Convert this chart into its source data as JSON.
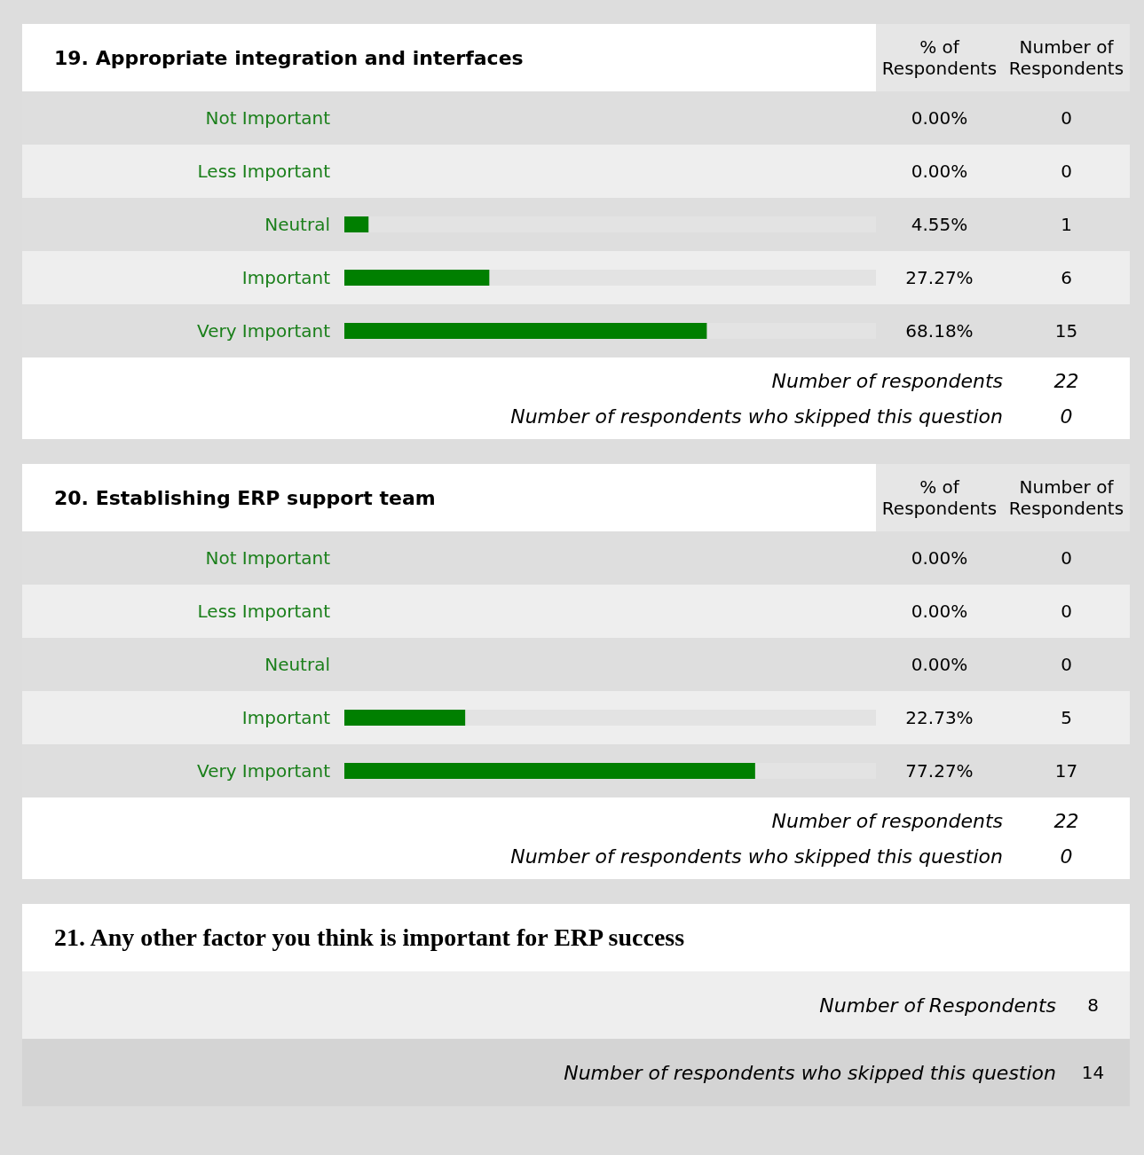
{
  "chart_data": [
    {
      "type": "bar",
      "orientation": "horizontal",
      "title": "19. Appropriate integration and interfaces",
      "categories": [
        "Not Important",
        "Less Important",
        "Neutral",
        "Important",
        "Very Important"
      ],
      "values": [
        0,
        0,
        4.55,
        27.27,
        68.18
      ],
      "value_labels": [
        "0.00%",
        "0.00%",
        "4.55%",
        "27.27%",
        "68.18%"
      ],
      "color": "#007f00",
      "xlim": [
        0,
        100
      ],
      "tick_labels": "y",
      "annotations": [
        "% of Respondents",
        "Number of Respondents",
        "0",
        "0",
        "1",
        "6",
        "15",
        "Number of respondents",
        "22",
        "Number of respondents who skipped this question",
        "0"
      ]
    },
    {
      "type": "bar",
      "orientation": "horizontal",
      "title": "20. Establishing ERP support team",
      "categories": [
        "Not Important",
        "Less Important",
        "Neutral",
        "Important",
        "Very Important"
      ],
      "values": [
        0,
        0,
        0,
        22.73,
        77.27
      ],
      "value_labels": [
        "0.00%",
        "0.00%",
        "0.00%",
        "22.73%",
        "77.27%"
      ],
      "color": "#007f00",
      "xlim": [
        0,
        100
      ],
      "tick_labels": "y",
      "annotations": [
        "% of Respondents",
        "Number of Respondents",
        "0",
        "0",
        "0",
        "5",
        "17",
        "Number of respondents",
        "22",
        "Number of respondents who skipped this question",
        "0"
      ]
    },
    {
      "type": "other",
      "title": "21. Any other factor you think is important for ERP success",
      "annotations": [
        "Number of Respondents",
        "8",
        "Number of respondents who skipped this question",
        "14"
      ]
    }
  ]
}
